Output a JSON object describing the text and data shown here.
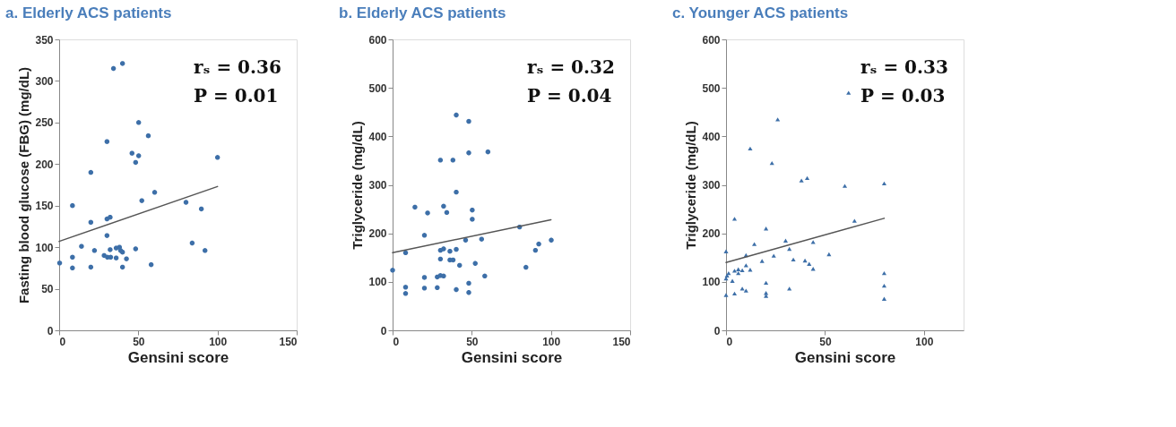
{
  "chart_data": [
    {
      "type": "scatter",
      "title": "a. Elderly ACS patients",
      "xlabel": "Gensini score",
      "ylabel": "Fasting blood glucose (FBG) (mg/dL)",
      "xlim": [
        0,
        150
      ],
      "xticks": [
        0,
        50,
        100,
        150
      ],
      "ylim": [
        0,
        350
      ],
      "yticks": [
        0,
        50,
        100,
        150,
        200,
        250,
        300,
        350
      ],
      "grid": false,
      "annotations": [
        "rₛ = 0.36",
        "P = 0.01"
      ],
      "series": [
        {
          "marker": "circle",
          "color": "#3d6fa8",
          "x": [
            34.3,
            40,
            50.2,
            56.3,
            30.2,
            46,
            50.2,
            48.3,
            100,
            20,
            60.3,
            52.2,
            80.1,
            89.8,
            8.4,
            30.2,
            32.2,
            20,
            30.2,
            14.1,
            84,
            22.3,
            32.2,
            36,
            38.1,
            38.8,
            40,
            48.3,
            92.1,
            28.4,
            30.5,
            32.5,
            36,
            42.5,
            8.4,
            0.3,
            58.1,
            8.4,
            20,
            40
          ],
          "values": [
            315,
            321,
            250,
            234,
            227,
            213,
            210,
            202,
            208,
            190,
            166,
            156,
            154,
            146,
            150,
            134,
            136,
            130,
            114,
            101,
            105,
            96,
            97,
            99,
            100,
            96,
            94,
            98,
            96,
            90,
            88,
            88,
            87,
            86,
            88,
            81,
            79,
            75,
            76,
            76
          ]
        },
        {
          "type": "line",
          "color": "#555555",
          "x": [
            0,
            100
          ],
          "values": [
            107,
            173
          ]
        }
      ]
    },
    {
      "type": "scatter",
      "title": "b. Elderly ACS patients",
      "xlabel": "Gensini score",
      "ylabel": "Triglyceride (mg/dL)",
      "xlim": [
        0,
        150
      ],
      "xticks": [
        0,
        50,
        100,
        150
      ],
      "ylim": [
        0,
        600
      ],
      "yticks": [
        0,
        100,
        200,
        300,
        400,
        500,
        600
      ],
      "grid": false,
      "annotations": [
        "rₛ = 0.32",
        "P = 0.04"
      ],
      "series": [
        {
          "marker": "circle",
          "color": "#3d6fa8",
          "x": [
            40.2,
            48.1,
            48.1,
            60.2,
            30.2,
            38.1,
            40.2,
            14.1,
            32.2,
            22.1,
            34.2,
            50.3,
            50.3,
            80.2,
            20.1,
            46.1,
            56.2,
            100.2,
            92.3,
            90.2,
            8.2,
            30.2,
            32.2,
            36.2,
            40.2,
            30.2,
            36.2,
            38.2,
            42.3,
            52.2,
            84.2,
            0,
            20.1,
            28.2,
            30.2,
            32.2,
            58.2,
            48.1,
            8.2,
            20.1,
            28.2,
            40.2,
            8.2,
            48.1
          ],
          "values": [
            444,
            431,
            366,
            368,
            351,
            351,
            285,
            254,
            256,
            242,
            243,
            248,
            229,
            213,
            196,
            186,
            188,
            186,
            178,
            165,
            160,
            165,
            168,
            163,
            167,
            147,
            145,
            145,
            134,
            138,
            130,
            124,
            109,
            110,
            113,
            112,
            112,
            97,
            89,
            87,
            88,
            84,
            76,
            78
          ]
        },
        {
          "type": "line",
          "color": "#555555",
          "x": [
            0,
            100
          ],
          "values": [
            160,
            228
          ]
        }
      ]
    },
    {
      "type": "scatter",
      "title": "c. Younger ACS patients",
      "xlabel": "Gensini score",
      "ylabel": "Triglyceride (mg/dL)",
      "xlim": [
        0,
        120
      ],
      "xticks": [
        0,
        50,
        100
      ],
      "ylim": [
        0,
        600
      ],
      "yticks": [
        0,
        100,
        200,
        300,
        400,
        500,
        600
      ],
      "grid": false,
      "annotations": [
        "rₛ = 0.33",
        "P = 0.03"
      ],
      "series": [
        {
          "marker": "triangle",
          "color": "#3d6fa8",
          "x": [
            61.9,
            26.1,
            12.2,
            23.2,
            38.1,
            41,
            60,
            79.9,
            4.3,
            64.9,
            20.2,
            14.3,
            30.1,
            32,
            44,
            0,
            10.1,
            24.1,
            52,
            18.2,
            34,
            39.9,
            42,
            44,
            10.1,
            12.2,
            4.3,
            6.2,
            8.2,
            6.2,
            1.3,
            0.5,
            0,
            3.2,
            20.2,
            8.2,
            10.1,
            32,
            20.2,
            20.2,
            0,
            4.3,
            79.9,
            79.9,
            79.9
          ],
          "values": [
            490,
            435,
            375,
            345,
            309,
            314,
            298,
            303,
            230,
            226,
            210,
            178,
            185,
            168,
            182,
            163,
            155,
            154,
            157,
            143,
            146,
            144,
            137,
            127,
            134,
            125,
            123,
            126,
            124,
            118,
            118,
            113,
            107,
            102,
            98,
            86,
            82,
            86,
            77,
            71,
            73,
            76,
            118,
            92,
            65
          ]
        },
        {
          "type": "line",
          "color": "#555555",
          "x": [
            0,
            79.9
          ],
          "values": [
            140,
            231
          ]
        }
      ]
    }
  ]
}
